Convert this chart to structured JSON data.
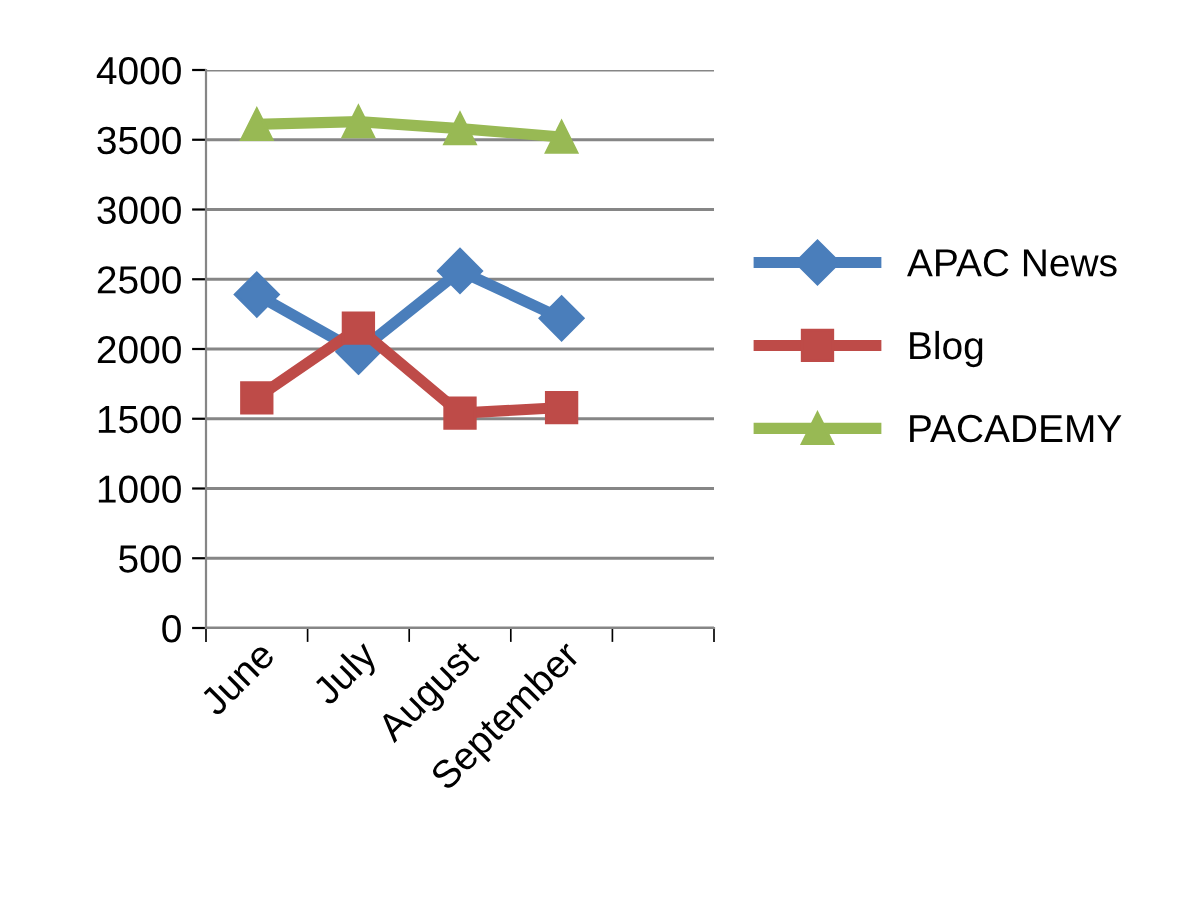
{
  "chart_data": {
    "type": "line",
    "categories": [
      "June",
      "July",
      "August",
      "September",
      null
    ],
    "series": [
      {
        "name": "APAC News",
        "color": "#4a7ebb",
        "marker": "diamond",
        "values": [
          2390,
          1980,
          2560,
          2220,
          null
        ]
      },
      {
        "name": "Blog",
        "color": "#be4b48",
        "marker": "square",
        "values": [
          1650,
          2150,
          1540,
          1580,
          null
        ]
      },
      {
        "name": "PACADEMY",
        "color": "#98b954",
        "marker": "triangle",
        "values": [
          3610,
          3630,
          3580,
          3520,
          null
        ]
      }
    ],
    "ylim": [
      0,
      4000
    ],
    "yticks": [
      0,
      500,
      1000,
      1500,
      2000,
      2500,
      3000,
      3500,
      4000
    ],
    "grid": "y",
    "legend": "right",
    "line_style": "solid"
  }
}
